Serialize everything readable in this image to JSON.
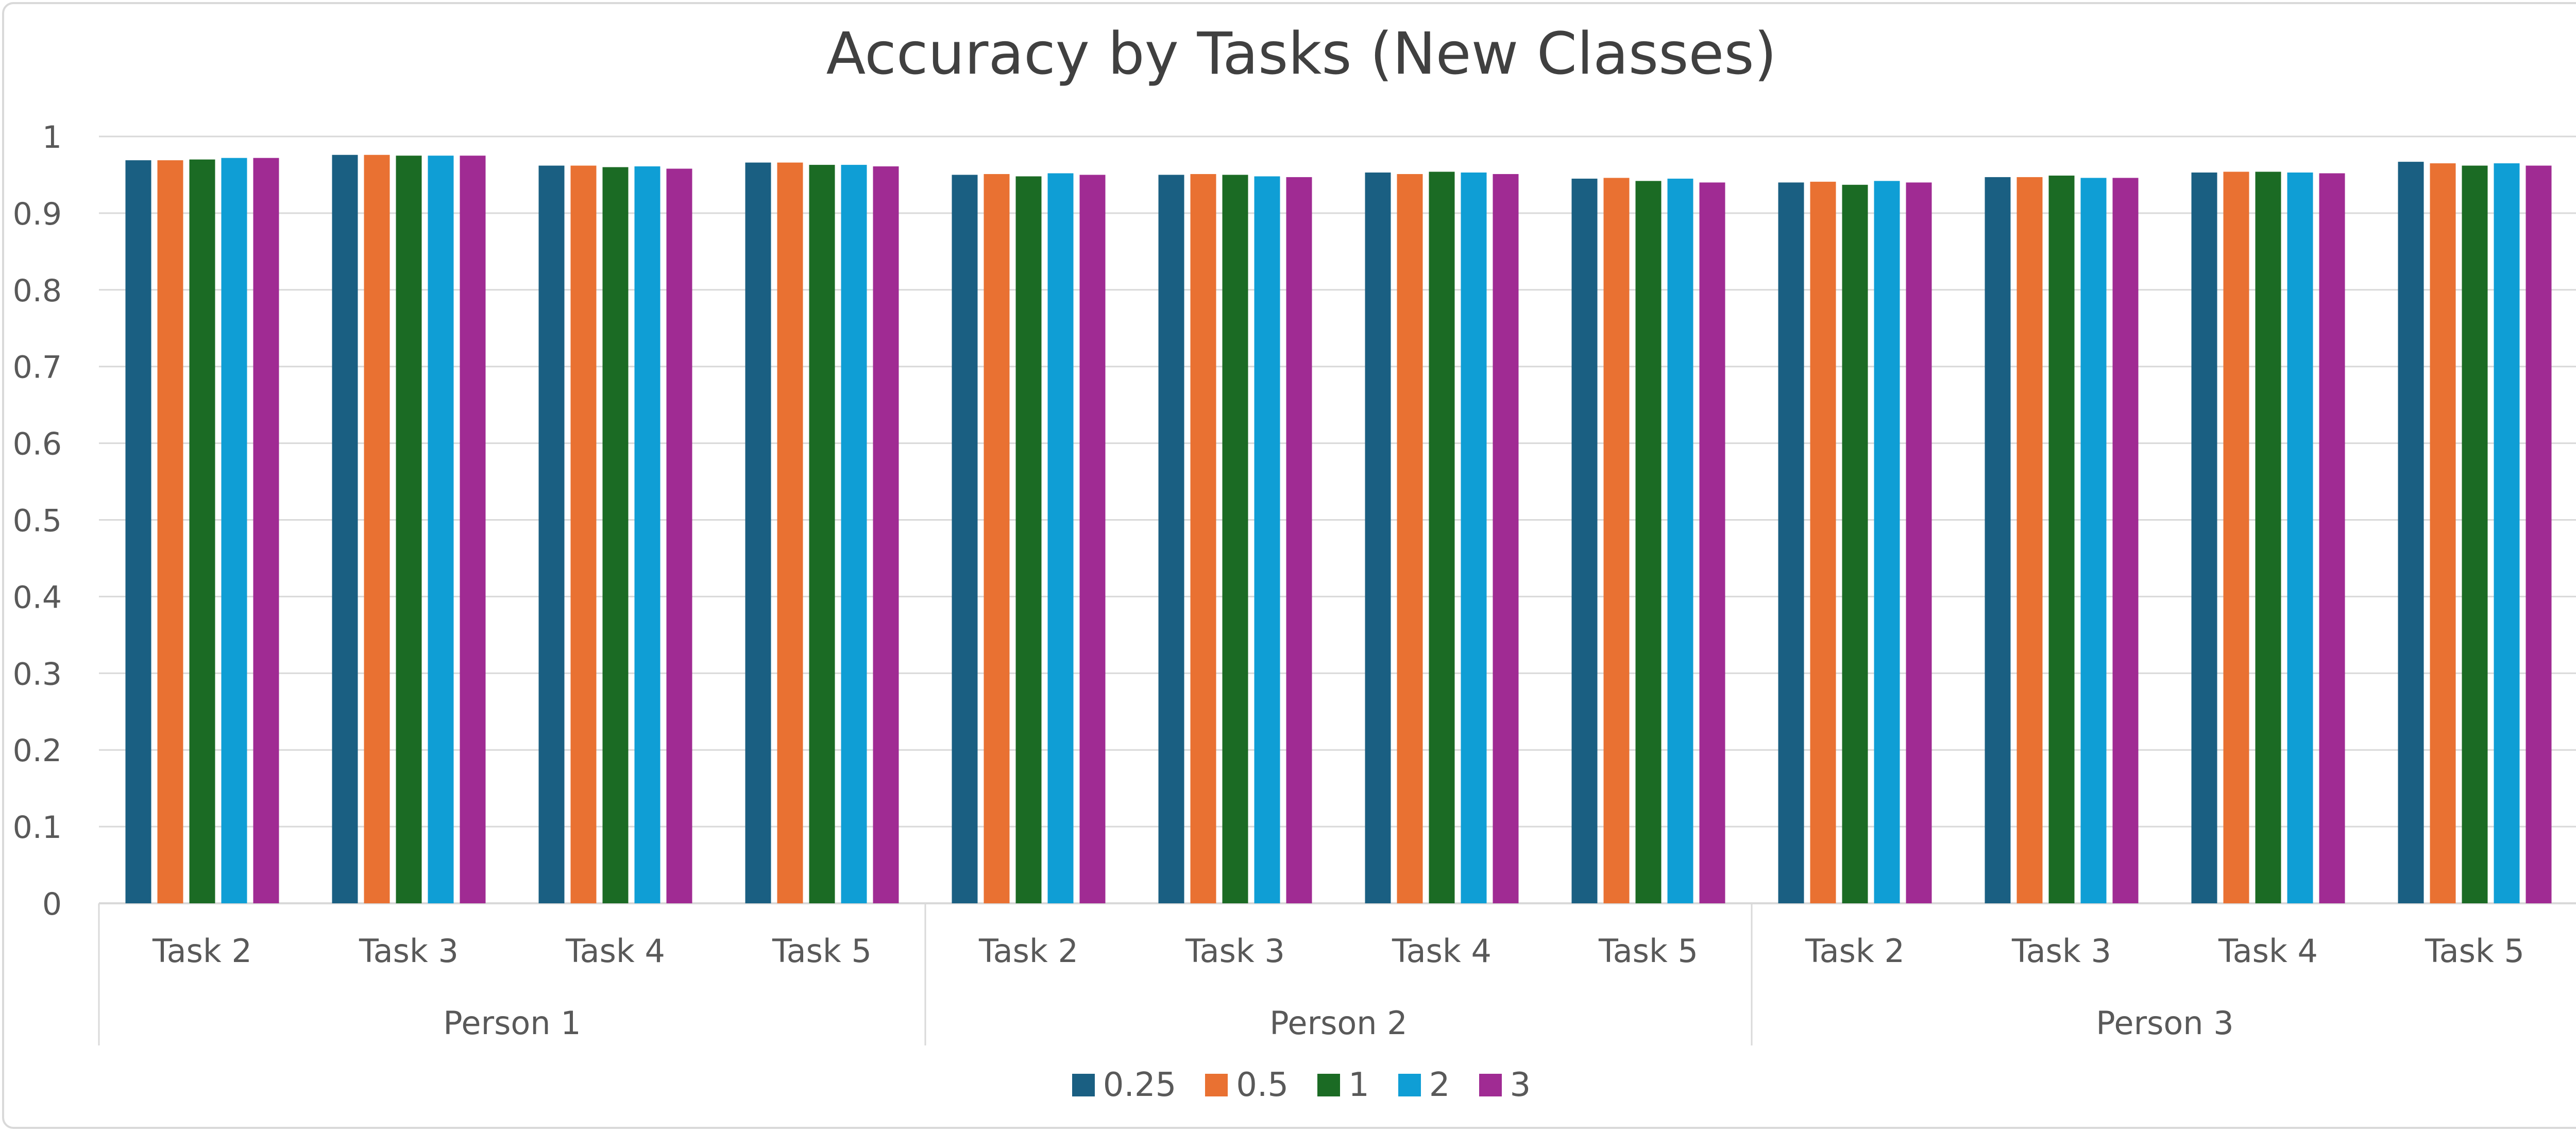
{
  "chart_data": {
    "type": "bar",
    "title": "Accuracy by Tasks (New Classes)",
    "xlabel": "",
    "ylabel": "",
    "ylim": [
      0,
      1
    ],
    "yticks": [
      "0",
      "0.1",
      "0.2",
      "0.3",
      "0.4",
      "0.5",
      "0.6",
      "0.7",
      "0.8",
      "0.9",
      "1"
    ],
    "grid": true,
    "legend_position": "bottom",
    "groups": [
      {
        "label": "Person 1",
        "categories": [
          "Task 2",
          "Task 3",
          "Task 4",
          "Task 5"
        ]
      },
      {
        "label": "Person 2",
        "categories": [
          "Task 2",
          "Task 3",
          "Task 4",
          "Task 5"
        ]
      },
      {
        "label": "Person 3",
        "categories": [
          "Task 2",
          "Task 3",
          "Task 4",
          "Task 5"
        ]
      }
    ],
    "categories": [
      "Task 2",
      "Task 3",
      "Task 4",
      "Task 5",
      "Task 2",
      "Task 3",
      "Task 4",
      "Task 5",
      "Task 2",
      "Task 3",
      "Task 4",
      "Task 5"
    ],
    "series": [
      {
        "name": "0.25",
        "color": "#1a5f82",
        "values": [
          0.969,
          0.976,
          0.962,
          0.966,
          0.95,
          0.95,
          0.953,
          0.945,
          0.94,
          0.947,
          0.953,
          0.967
        ]
      },
      {
        "name": "0.5",
        "color": "#e97132",
        "values": [
          0.969,
          0.976,
          0.962,
          0.966,
          0.951,
          0.951,
          0.951,
          0.946,
          0.941,
          0.947,
          0.954,
          0.965
        ]
      },
      {
        "name": "1",
        "color": "#1b6b24",
        "values": [
          0.97,
          0.975,
          0.96,
          0.963,
          0.948,
          0.95,
          0.954,
          0.942,
          0.937,
          0.949,
          0.954,
          0.962
        ]
      },
      {
        "name": "2",
        "color": "#0f9ed5",
        "values": [
          0.972,
          0.975,
          0.961,
          0.963,
          0.952,
          0.948,
          0.953,
          0.945,
          0.942,
          0.946,
          0.953,
          0.965
        ]
      },
      {
        "name": "3",
        "color": "#a02b93",
        "values": [
          0.972,
          0.975,
          0.958,
          0.961,
          0.95,
          0.947,
          0.951,
          0.94,
          0.94,
          0.946,
          0.952,
          0.962
        ]
      }
    ]
  }
}
